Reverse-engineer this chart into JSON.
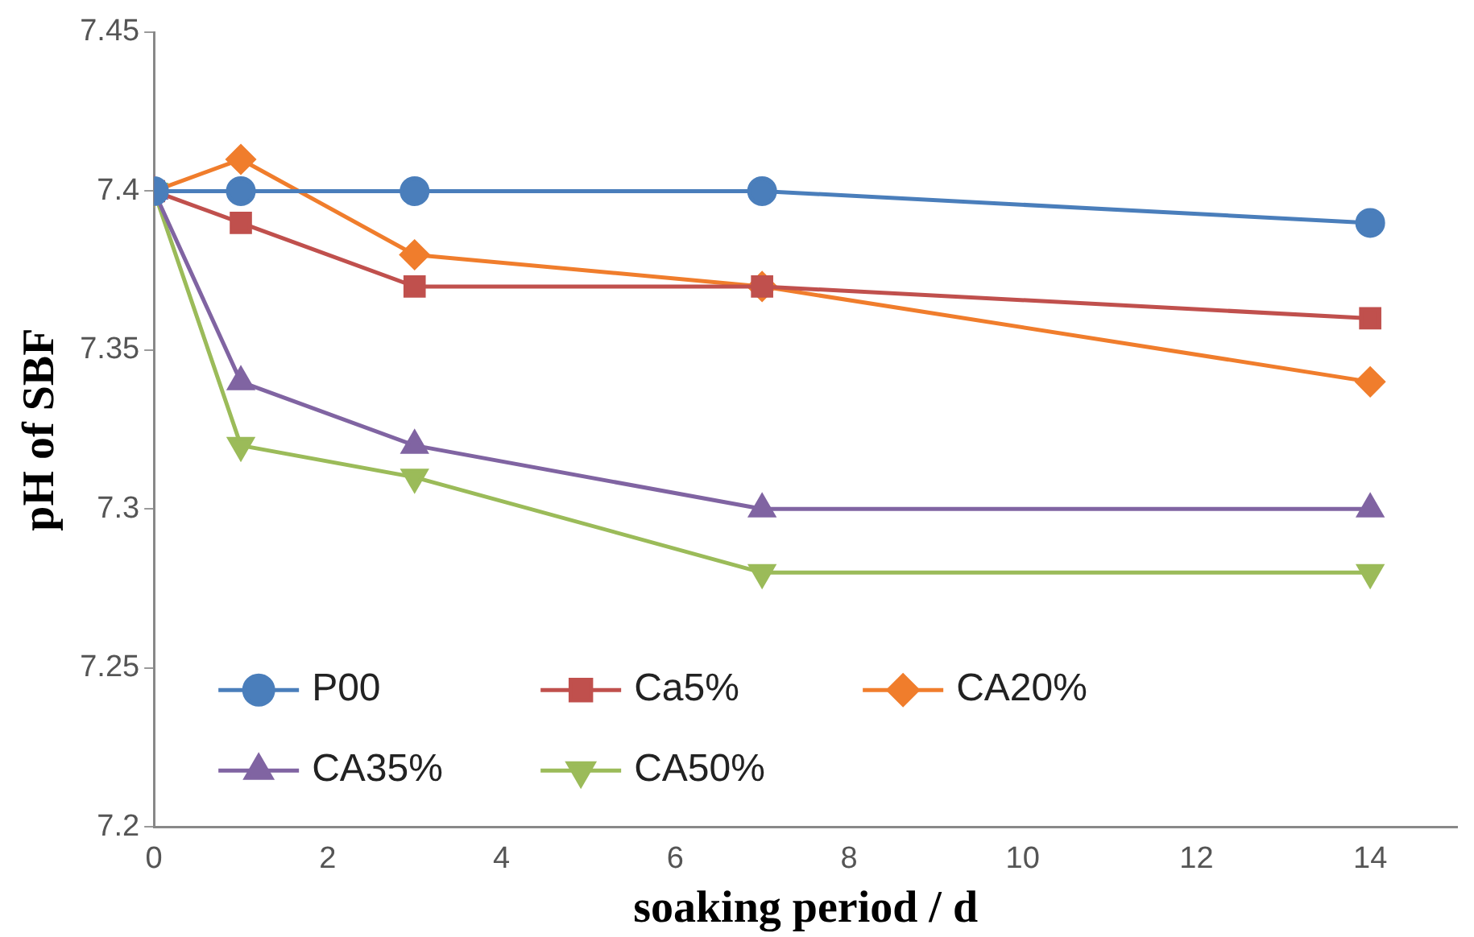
{
  "chart_data": {
    "type": "line",
    "xlabel": "soaking period / d",
    "ylabel": "pH of SBF",
    "x": [
      0,
      1,
      3,
      7,
      14
    ],
    "series": [
      {
        "name": "P00",
        "color": "#4a7ebb",
        "marker": "circle",
        "values": [
          7.4,
          7.4,
          7.4,
          7.4,
          7.39
        ]
      },
      {
        "name": "Ca5%",
        "color": "#c0504d",
        "marker": "square",
        "values": [
          7.4,
          7.39,
          7.37,
          7.37,
          7.36
        ]
      },
      {
        "name": "CA20%",
        "color": "#f07d2c",
        "marker": "diamond",
        "values": [
          7.4,
          7.41,
          7.38,
          7.37,
          7.34
        ]
      },
      {
        "name": "CA35%",
        "color": "#8064a2",
        "marker": "triangle",
        "values": [
          7.4,
          7.34,
          7.32,
          7.3,
          7.3
        ]
      },
      {
        "name": "CA50%",
        "color": "#9bbb59",
        "marker": "triangle_down",
        "values": [
          7.4,
          7.32,
          7.31,
          7.28,
          7.28
        ]
      }
    ],
    "xlim": [
      0,
      15
    ],
    "xticks": [
      0,
      2,
      4,
      6,
      8,
      10,
      12,
      14
    ],
    "ylim": [
      7.2,
      7.45
    ],
    "yticks": [
      7.2,
      7.25,
      7.3,
      7.35,
      7.4,
      7.45
    ],
    "grid": false,
    "legend": "bottom left",
    "line_style": "solid"
  }
}
